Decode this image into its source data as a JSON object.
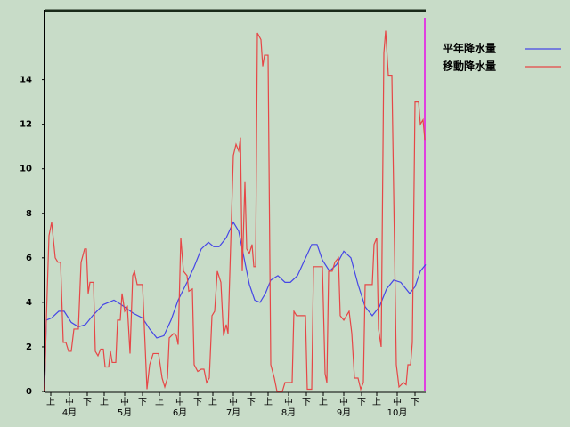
{
  "chart_data": {
    "type": "line",
    "xlim": [
      0,
      214
    ],
    "ylim": [
      0,
      17.1
    ],
    "yticks": [
      0,
      2,
      4,
      6,
      8,
      10,
      12,
      14
    ],
    "xticks": [
      {
        "value": 3.5,
        "label": "上"
      },
      {
        "value": 14,
        "label": "中"
      },
      {
        "value": 24,
        "label": "下"
      },
      {
        "value": 33.5,
        "label": "上"
      },
      {
        "value": 45,
        "label": "中"
      },
      {
        "value": 55,
        "label": "下"
      },
      {
        "value": 64.5,
        "label": "上"
      },
      {
        "value": 76,
        "label": "中"
      },
      {
        "value": 86,
        "label": "下"
      },
      {
        "value": 94.5,
        "label": "上"
      },
      {
        "value": 106,
        "label": "中"
      },
      {
        "value": 116,
        "label": "下"
      },
      {
        "value": 125.5,
        "label": "上"
      },
      {
        "value": 137,
        "label": "中"
      },
      {
        "value": 147,
        "label": "下"
      },
      {
        "value": 156.5,
        "label": "上"
      },
      {
        "value": 168,
        "label": "中"
      },
      {
        "value": 178,
        "label": "下"
      },
      {
        "value": 186.5,
        "label": "上"
      },
      {
        "value": 198,
        "label": "中"
      },
      {
        "value": 208,
        "label": "下"
      }
    ],
    "month_labels": [
      {
        "value": 14,
        "label": "4月"
      },
      {
        "value": 45,
        "label": "5月"
      },
      {
        "value": 76,
        "label": "6月"
      },
      {
        "value": 106,
        "label": "7月"
      },
      {
        "value": 137,
        "label": "8月"
      },
      {
        "value": 168,
        "label": "9月"
      },
      {
        "value": 198,
        "label": "10月"
      }
    ],
    "legend": "upper right",
    "series": [
      {
        "name": "平年降水量",
        "color": "#4646e6",
        "x": [
          0,
          1,
          4,
          8,
          11,
          15,
          19,
          23,
          27,
          33,
          39,
          43,
          50,
          55,
          59,
          63,
          67,
          71,
          75,
          80,
          84,
          88,
          92,
          95,
          98,
          102,
          106,
          109,
          112,
          115,
          118,
          121,
          124,
          127,
          131,
          135,
          138,
          142,
          146,
          150,
          153,
          156,
          160,
          164,
          168,
          172,
          176,
          180,
          184,
          188,
          192,
          196,
          200,
          205,
          208,
          211,
          214
        ],
        "values": [
          0,
          3.2,
          3.3,
          3.6,
          3.6,
          3.1,
          2.9,
          3,
          3.4,
          3.9,
          4.1,
          3.9,
          3.5,
          3.3,
          2.8,
          2.4,
          2.5,
          3.2,
          4.1,
          4.9,
          5.6,
          6.4,
          6.7,
          6.5,
          6.5,
          6.9,
          7.6,
          7.2,
          6,
          4.8,
          4.1,
          4,
          4.4,
          5,
          5.2,
          4.9,
          4.9,
          5.2,
          5.9,
          6.6,
          6.6,
          5.9,
          5.4,
          5.7,
          6.3,
          6,
          4.8,
          3.8,
          3.4,
          3.8,
          4.6,
          5,
          4.9,
          4.4,
          4.7,
          5.4,
          5.7
        ]
      },
      {
        "name": "移動降水量",
        "color": "#e64646",
        "x": [
          0,
          1,
          2.5,
          4,
          6,
          7.5,
          9,
          10.5,
          12,
          13.5,
          15,
          16.5,
          19,
          20.5,
          22.5,
          23.5,
          24.5,
          25.5,
          27.5,
          28.5,
          30,
          31.5,
          33,
          34,
          36,
          37,
          38,
          40,
          41,
          42.5,
          43.5,
          45,
          46.5,
          48,
          49.5,
          50.5,
          52,
          55,
          57.5,
          59,
          61,
          64,
          66,
          67.5,
          69,
          70,
          72.5,
          74,
          75,
          76.5,
          78,
          80,
          81,
          83,
          84,
          86,
          88,
          89.5,
          91,
          92.5,
          94,
          95.5,
          97,
          99,
          100.5,
          102,
          103,
          106,
          107.5,
          109,
          110,
          111,
          112.5,
          113.5,
          115,
          116.5,
          117.5,
          118.5,
          119.5,
          121.5,
          122.5,
          123.5,
          125.5,
          127,
          129,
          130.5,
          133.5,
          135,
          139,
          140,
          141.5,
          146.5,
          147.5,
          150,
          151,
          156,
          157.5,
          158.5,
          159.5,
          161.5,
          163,
          165,
          166,
          168,
          171,
          172.5,
          174,
          176,
          177.5,
          179,
          180,
          184,
          185,
          186.5,
          187.5,
          189,
          190.5,
          191.5,
          193,
          195,
          197.5,
          199,
          201.5,
          203,
          204,
          205.5,
          206.5,
          208,
          210,
          211,
          212.5,
          213.5
        ],
        "values": [
          0,
          3.2,
          7,
          7.6,
          6,
          5.8,
          5.8,
          2.2,
          2.2,
          1.8,
          1.8,
          2.8,
          2.8,
          5.8,
          6.4,
          6.4,
          4.4,
          4.9,
          4.9,
          1.8,
          1.6,
          1.9,
          1.9,
          1.1,
          1.1,
          1.8,
          1.3,
          1.3,
          3.2,
          3.2,
          4.4,
          3.6,
          3.8,
          1.7,
          5.2,
          5.4,
          4.8,
          4.8,
          0.1,
          1.2,
          1.7,
          1.7,
          0.6,
          0.2,
          0.6,
          2.4,
          2.6,
          2.5,
          2.1,
          6.9,
          5.4,
          5.2,
          4.5,
          4.6,
          1.2,
          0.9,
          1,
          1,
          0.4,
          0.6,
          3.4,
          3.6,
          5.4,
          4.9,
          2.5,
          3,
          2.6,
          10.6,
          11.1,
          10.8,
          11.4,
          5.4,
          9.4,
          6.4,
          6.2,
          6.6,
          5.6,
          5.6,
          16.1,
          15.8,
          14.6,
          15.1,
          15.1,
          1.2,
          0.6,
          0,
          0,
          0.4,
          0.4,
          3.6,
          3.4,
          3.4,
          0.1,
          0.1,
          5.6,
          5.6,
          0.8,
          0.4,
          5.4,
          5.4,
          5.8,
          6,
          3.4,
          3.2,
          3.6,
          2.6,
          0.6,
          0.6,
          0.1,
          0.4,
          4.8,
          4.8,
          6.6,
          6.9,
          2.8,
          2,
          15.2,
          16.2,
          14.2,
          14.2,
          1.2,
          0.2,
          0.4,
          0.3,
          1.2,
          1.2,
          2.2,
          13,
          13,
          12,
          12.2,
          11.3
        ]
      }
    ]
  }
}
